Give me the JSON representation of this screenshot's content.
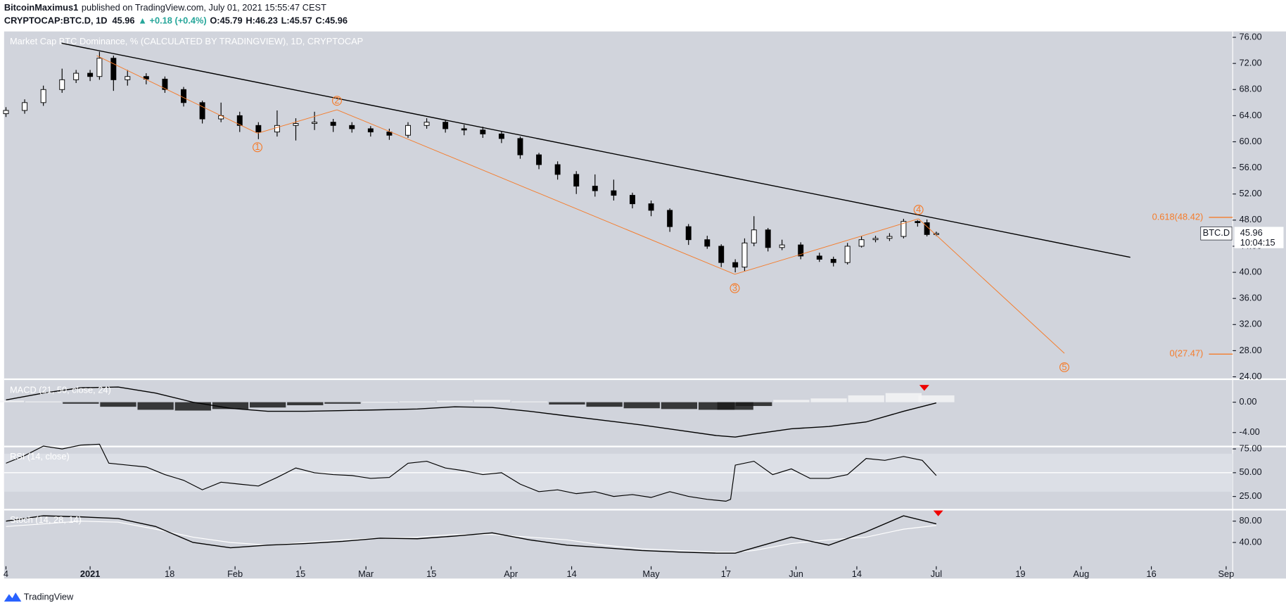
{
  "header": {
    "author": "BitcoinMaximus1",
    "published": "published on TradingView.com, July 01, 2021 15:55:47 CEST",
    "symbol": "CRYPTOCAP:BTC.D, 1D",
    "last": "45.96",
    "change": "▲ +0.18 (+0.4%)",
    "ohlc": [
      {
        "key": "O:",
        "value": "45.79"
      },
      {
        "key": "H:",
        "value": "46.23"
      },
      {
        "key": "L:",
        "value": "45.57"
      },
      {
        "key": "C:",
        "value": "45.96"
      }
    ]
  },
  "footer": {
    "brand": "TradingView"
  },
  "chart_data": [
    {
      "type": "candlestick",
      "title": "Market Cap BTC Dominance, % (CALCULATED BY TRADINGVIEW), 1D, CRYPTOCAP",
      "x": [
        -18,
        -14,
        -10,
        -6,
        -3,
        0,
        2,
        5,
        8,
        12,
        16,
        20,
        24,
        28,
        32,
        36,
        40,
        44,
        48,
        52,
        56,
        60,
        64,
        68,
        72,
        76,
        80,
        84,
        88,
        92,
        96,
        100,
        104,
        108,
        112,
        116,
        120,
        124,
        128,
        132,
        135,
        138,
        140,
        142,
        145,
        148,
        152,
        156,
        159,
        162,
        165,
        168,
        171,
        174,
        177,
        179,
        181
      ],
      "open": [
        64.3,
        64.8,
        66,
        68,
        69.5,
        70.5,
        70,
        72.8,
        69.5,
        70,
        69.6,
        68,
        66,
        63.5,
        64,
        62.5,
        61.5,
        62.5,
        62.8,
        63,
        62.5,
        62,
        61.5,
        61,
        62.5,
        63,
        62,
        61.8,
        61.2,
        60.5,
        58,
        56.5,
        55,
        53.2,
        52.5,
        51.8,
        50.5,
        49.5,
        47,
        45,
        44,
        41.5,
        40.8,
        44.5,
        46.5,
        43.8,
        44.2,
        42.5,
        42,
        41.5,
        44,
        45,
        45.2,
        45.5,
        47.8,
        47.6,
        45.79
      ],
      "high": [
        65.3,
        66.5,
        68.6,
        71.2,
        71,
        71,
        73.8,
        73.2,
        71,
        70.5,
        70,
        68.4,
        66.3,
        66,
        64.6,
        63,
        64.8,
        63.6,
        64.6,
        63.5,
        63,
        62.4,
        62,
        63,
        63.6,
        63.4,
        62.6,
        62.3,
        61.6,
        60.8,
        58.3,
        57,
        55.5,
        55,
        54.2,
        52.2,
        51,
        49.8,
        47.4,
        45.6,
        44.3,
        42,
        45.2,
        48.6,
        46.8,
        45,
        44.6,
        43,
        42.4,
        44.5,
        45.5,
        45.6,
        46,
        48.2,
        48,
        48.1,
        46.23
      ],
      "low": [
        63.8,
        64.3,
        65.5,
        67.5,
        69,
        69.3,
        69.5,
        67.8,
        68.6,
        68.8,
        67.5,
        65.4,
        62.8,
        63,
        61.5,
        60.4,
        60.8,
        60.2,
        61.8,
        61.5,
        61.4,
        60.8,
        60.3,
        60.6,
        62,
        61.4,
        61,
        60.6,
        59.8,
        57.4,
        55.8,
        54.2,
        52,
        51.6,
        51,
        49.8,
        48.6,
        46.2,
        44.2,
        43.6,
        40.8,
        40,
        40.2,
        44,
        43.2,
        43.4,
        42,
        41.6,
        40.9,
        41.2,
        43.8,
        44.6,
        44.8,
        45.2,
        47,
        45.5,
        45.57
      ],
      "close": [
        64.8,
        66,
        68,
        69.5,
        70.5,
        70,
        72.8,
        69.5,
        70,
        69.6,
        68,
        66,
        63.5,
        64,
        62.5,
        61.5,
        62.5,
        62.8,
        63,
        62.5,
        62,
        61.5,
        61,
        62.5,
        63,
        62,
        61.8,
        61.2,
        60.5,
        58,
        56.5,
        55,
        53.2,
        52.5,
        51.8,
        50.5,
        49.5,
        47,
        45,
        44,
        41.5,
        40.8,
        44.5,
        46.5,
        43.8,
        44.2,
        42.5,
        42,
        41.5,
        44,
        45,
        45.2,
        45.5,
        47.8,
        47.6,
        45.79,
        45.96
      ],
      "xlim": [
        -18.4,
        244.4
      ],
      "xticks": [
        {
          "value": -18,
          "label": "4"
        },
        {
          "value": 0,
          "label": "2021"
        },
        {
          "value": 17,
          "label": "18"
        },
        {
          "value": 31,
          "label": "Feb"
        },
        {
          "value": 45,
          "label": "15"
        },
        {
          "value": 59,
          "label": "Mar"
        },
        {
          "value": 73,
          "label": "15"
        },
        {
          "value": 90,
          "label": "Apr"
        },
        {
          "value": 103,
          "label": "14"
        },
        {
          "value": 120,
          "label": "May"
        },
        {
          "value": 136,
          "label": "17"
        },
        {
          "value": 151,
          "label": "Jun"
        },
        {
          "value": 164,
          "label": "14"
        },
        {
          "value": 181,
          "label": "Jul"
        },
        {
          "value": 199,
          "label": "19"
        },
        {
          "value": 212,
          "label": "Aug"
        },
        {
          "value": 227,
          "label": "16"
        },
        {
          "value": 243,
          "label": "Sep"
        }
      ],
      "ylim": [
        23.75,
        76.9
      ],
      "yticks": [
        {
          "value": 24,
          "label": "24.00"
        },
        {
          "value": 28,
          "label": "28.00"
        },
        {
          "value": 32,
          "label": "32.00"
        },
        {
          "value": 36,
          "label": "36.00"
        },
        {
          "value": 40,
          "label": "40.00"
        },
        {
          "value": 44,
          "label": "44.00"
        },
        {
          "value": 48,
          "label": "48.00"
        },
        {
          "value": 52,
          "label": "52.00"
        },
        {
          "value": 56,
          "label": "56.00"
        },
        {
          "value": 60,
          "label": "60.00"
        },
        {
          "value": 64,
          "label": "64.00"
        },
        {
          "value": 68,
          "label": "68.00"
        },
        {
          "value": 72,
          "label": "72.00"
        },
        {
          "value": 76,
          "label": "76.00"
        }
      ],
      "trendline": [
        {
          "x": -6.1,
          "y": 75.1
        },
        {
          "x": 222.5,
          "y": 42.3
        }
      ],
      "wave_color": "#f57c2b",
      "waves": [
        {
          "x": 1.4,
          "y": 73.2
        },
        {
          "x": 35.8,
          "y": 61.3,
          "label": "1"
        },
        {
          "x": 52.8,
          "y": 64.9,
          "label": "2"
        },
        {
          "x": 137.9,
          "y": 39.7,
          "label": "3"
        },
        {
          "x": 177.2,
          "y": 48.2,
          "label": "4"
        },
        {
          "x": 208.4,
          "y": 27.6,
          "label": "5"
        }
      ],
      "fib_levels": [
        {
          "value": 48.42,
          "label": "0.618(48.42)"
        },
        {
          "value": 27.47,
          "label": "0(27.47)"
        }
      ],
      "last_price": {
        "symbol": "BTC.D",
        "value": 45.96,
        "countdown": "10:04:15"
      }
    },
    {
      "type": "macd",
      "title": "MACD (21, 50, close, 24)",
      "x": [
        -18,
        -10,
        -2,
        6,
        14,
        22,
        30,
        38,
        46,
        54,
        62,
        70,
        78,
        86,
        94,
        102,
        110,
        118,
        126,
        134,
        138,
        142,
        150,
        158,
        166,
        174,
        181
      ],
      "line": [
        0.3,
        1.2,
        1.9,
        2.0,
        1.2,
        0,
        -0.8,
        -1.2,
        -1.2,
        -1.1,
        -1.0,
        -0.9,
        -0.6,
        -0.7,
        -1.2,
        -1.8,
        -2.4,
        -3.0,
        -3.7,
        -4.4,
        -4.6,
        -4.2,
        -3.5,
        -3.2,
        -2.6,
        -1.2,
        -0.1
      ],
      "histogram": [
        0.2,
        0.1,
        -0.2,
        -0.6,
        -1.0,
        -1.1,
        -0.9,
        -0.7,
        -0.4,
        -0.2,
        0.05,
        0.1,
        0.2,
        0.3,
        0.1,
        -0.3,
        -0.6,
        -0.8,
        -0.9,
        -1.0,
        -1.0,
        -0.5,
        0.3,
        0.5,
        0.9,
        1.2,
        0.9
      ],
      "ylim": [
        -5.73,
        2.92
      ],
      "yticks": [
        {
          "value": 0,
          "label": "0.00"
        },
        {
          "value": -4,
          "label": "-4.00"
        }
      ]
    },
    {
      "type": "rsi",
      "title": "RSI (14, close)",
      "x": [
        -18,
        -14,
        -10,
        -6,
        -2,
        2,
        4,
        8,
        12,
        16,
        20,
        24,
        28,
        32,
        36,
        40,
        44,
        48,
        52,
        56,
        60,
        64,
        68,
        72,
        76,
        80,
        84,
        88,
        92,
        96,
        100,
        104,
        108,
        112,
        116,
        120,
        124,
        128,
        132,
        136,
        137,
        138,
        142,
        146,
        150,
        154,
        158,
        162,
        166,
        170,
        174,
        178,
        181
      ],
      "values": [
        60,
        68,
        78,
        75,
        79,
        80,
        60,
        58,
        56,
        48,
        42,
        32,
        40,
        38,
        36,
        45,
        55,
        50,
        48,
        47,
        44,
        45,
        60,
        62,
        55,
        52,
        48,
        50,
        38,
        30,
        32,
        28,
        30,
        25,
        27,
        24,
        30,
        25,
        22,
        20,
        22,
        58,
        62,
        48,
        54,
        44,
        44,
        48,
        65,
        63,
        67,
        63,
        47
      ],
      "band": [
        30,
        70
      ],
      "midline": 50,
      "ylim": [
        12,
        76.7
      ],
      "yticks": [
        {
          "value": 75,
          "label": "75.00"
        },
        {
          "value": 50,
          "label": "50.00"
        },
        {
          "value": 25,
          "label": "25.00"
        }
      ]
    },
    {
      "type": "stoch",
      "title": "Stoch (14, 28, 14)",
      "x": [
        -18,
        -10,
        -2,
        6,
        14,
        22,
        30,
        38,
        46,
        54,
        62,
        70,
        78,
        86,
        94,
        102,
        110,
        118,
        126,
        134,
        138,
        142,
        150,
        158,
        166,
        174,
        181
      ],
      "k": [
        80,
        90,
        88,
        85,
        70,
        40,
        30,
        35,
        38,
        42,
        48,
        47,
        52,
        58,
        45,
        35,
        30,
        25,
        22,
        20,
        20,
        30,
        50,
        35,
        60,
        90,
        75
      ],
      "d": [
        70,
        75,
        80,
        78,
        65,
        50,
        40,
        35,
        40,
        45,
        48,
        50,
        55,
        55,
        50,
        45,
        35,
        28,
        25,
        22,
        22,
        25,
        38,
        45,
        50,
        65,
        72
      ],
      "ylim": [
        -4.6,
        100
      ],
      "yticks": [
        {
          "value": 80,
          "label": "80.00"
        },
        {
          "value": 40,
          "label": "40.00"
        }
      ]
    }
  ]
}
